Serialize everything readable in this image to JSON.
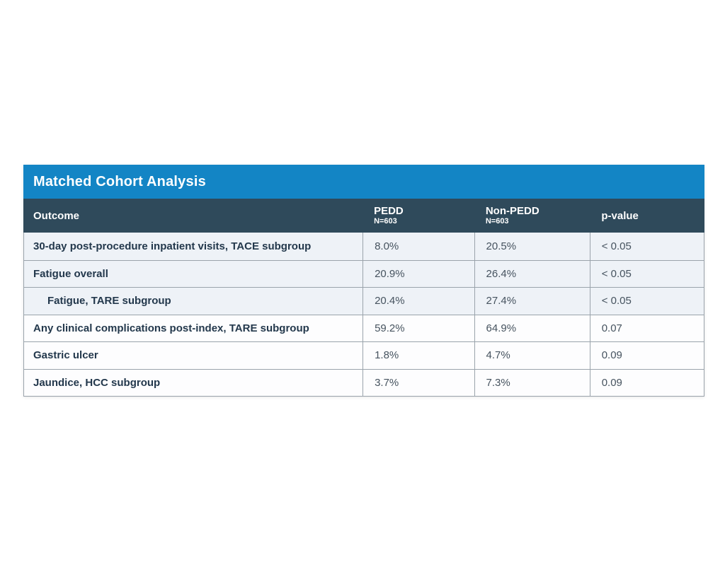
{
  "table": {
    "title": "Matched Cohort Analysis",
    "columns": {
      "outcome": "Outcome",
      "pedd": {
        "label": "PEDD",
        "sub": "N=603"
      },
      "nonpedd": {
        "label": "Non-PEDD",
        "sub": "N=603"
      },
      "pvalue": "p-value"
    },
    "rows": [
      {
        "outcome": "30-day post-procedure inpatient visits, TACE subgroup",
        "pedd": "8.0%",
        "nonpedd": "20.5%",
        "pvalue": "< 0.05",
        "indent": false,
        "shaded": true
      },
      {
        "outcome": "Fatigue overall",
        "pedd": "20.9%",
        "nonpedd": "26.4%",
        "pvalue": "< 0.05",
        "indent": false,
        "shaded": true
      },
      {
        "outcome": "Fatigue, TARE subgroup",
        "pedd": "20.4%",
        "nonpedd": "27.4%",
        "pvalue": "< 0.05",
        "indent": true,
        "shaded": true
      },
      {
        "outcome": "Any clinical complications post-index, TARE subgroup",
        "pedd": "59.2%",
        "nonpedd": "64.9%",
        "pvalue": "0.07",
        "indent": false,
        "shaded": false
      },
      {
        "outcome": "Gastric ulcer",
        "pedd": "1.8%",
        "nonpedd": "4.7%",
        "pvalue": "0.09",
        "indent": false,
        "shaded": false
      },
      {
        "outcome": "Jaundice, HCC subgroup",
        "pedd": "3.7%",
        "nonpedd": "7.3%",
        "pvalue": "0.09",
        "indent": false,
        "shaded": false
      }
    ],
    "colors": {
      "title_bar": "#1385C5",
      "header_row": "#2F4A5B",
      "shaded_row": "#EEF2F7",
      "white_row": "#FDFDFE",
      "row_label_text": "#23384C",
      "value_text": "#46535F",
      "grid_line": "#9AA3AB"
    }
  }
}
